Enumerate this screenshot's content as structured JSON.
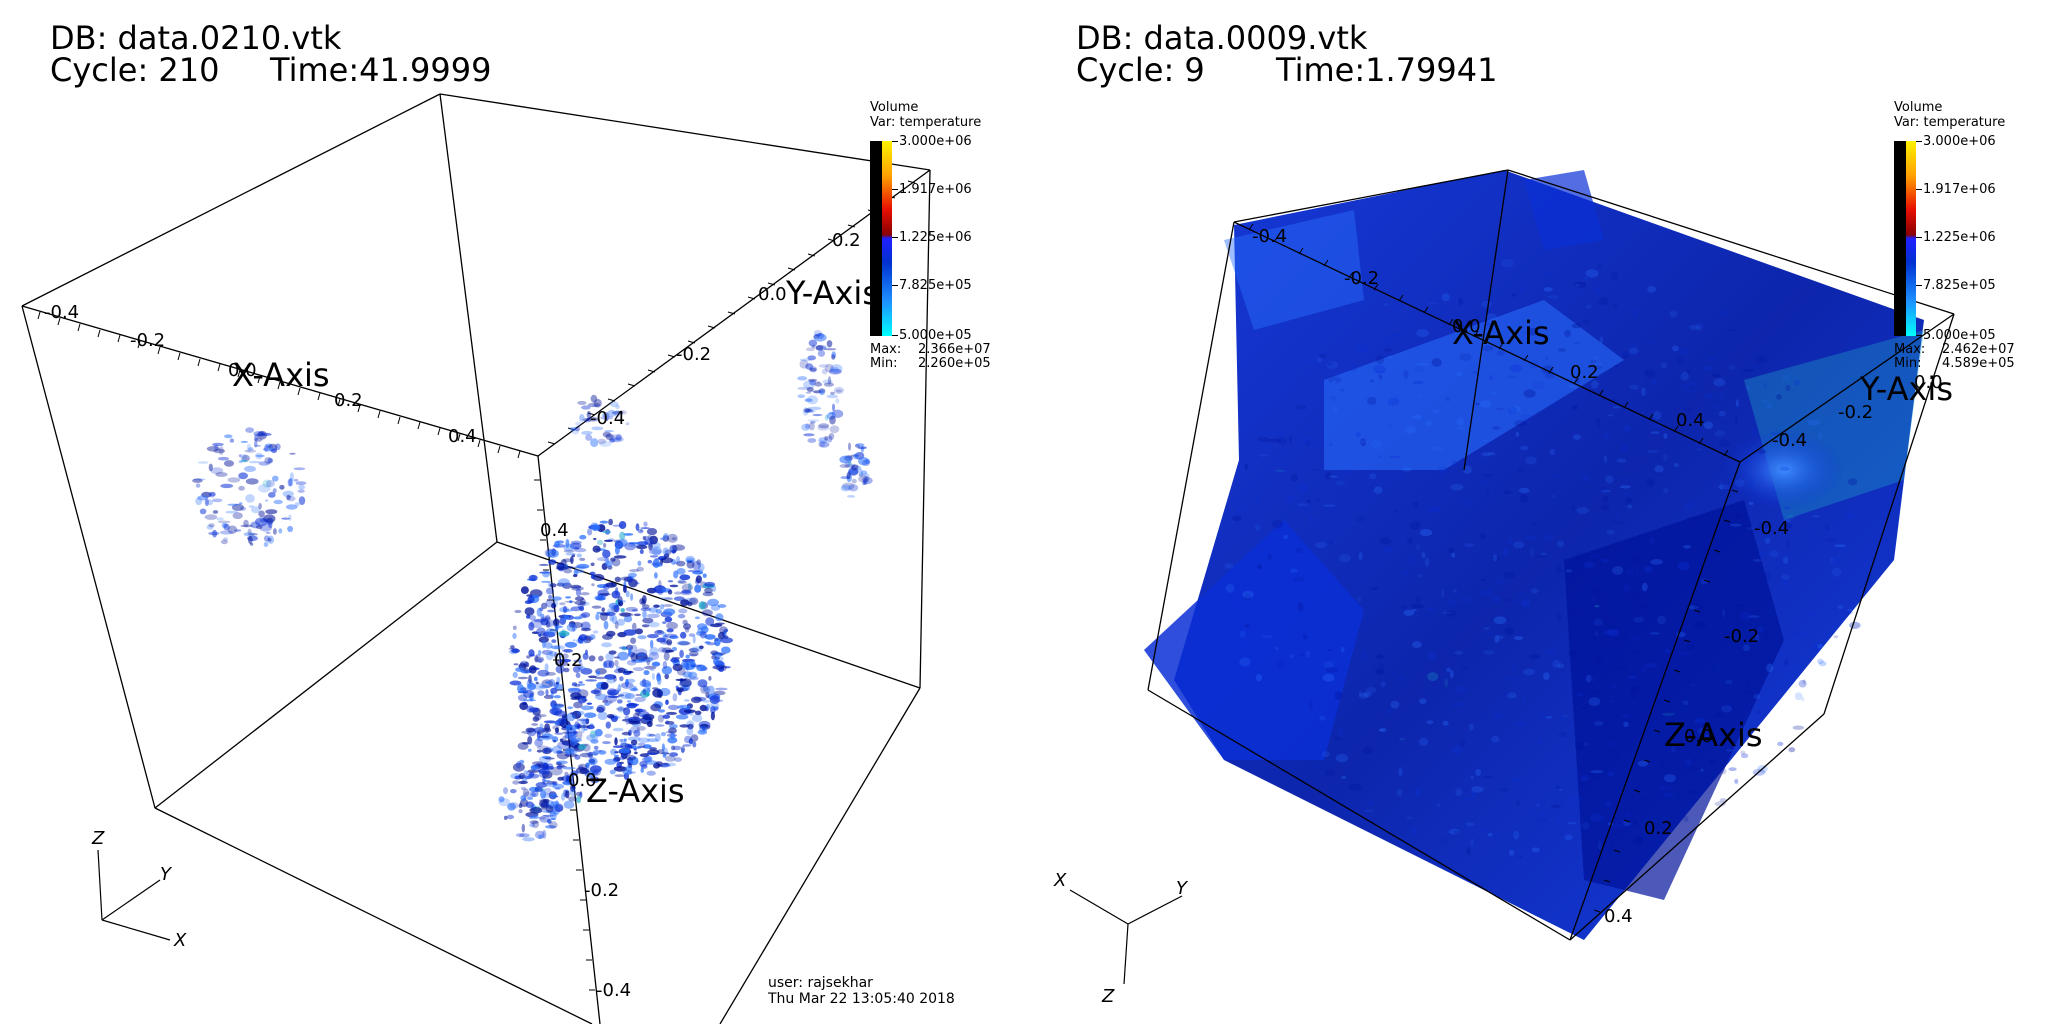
{
  "left": {
    "db": "DB: data.0210.vtk",
    "cycle": "Cycle: 210",
    "time": "Time:41.9999",
    "legend": {
      "title": "Volume",
      "var": "Var: temperature",
      "labels": [
        "3.000e+06",
        "1.917e+06",
        "1.225e+06",
        "7.825e+05",
        "5.000e+05"
      ],
      "max_label": "Max:",
      "max_value": "2.366e+07",
      "min_label": "Min:",
      "min_value": "2.260e+05",
      "overlap_tick": "0.4"
    },
    "axes": {
      "x_title": "X-Axis",
      "y_title": "Y-Axis",
      "z_title": "Z-Axis",
      "x_ticks": [
        "-0.4",
        "-0.2",
        "0.0",
        "0.2",
        "0.4"
      ],
      "y_ticks": [
        "-0.4",
        "-0.2",
        "0.0",
        "0.2"
      ],
      "z_ticks": [
        "0.4",
        "0.2",
        "0.0",
        "-0.2",
        "-0.4"
      ]
    },
    "triad": {
      "x": "X",
      "y": "Y",
      "z": "Z"
    },
    "user": "user: rajsekhar",
    "date": "Thu Mar 22 13:05:40 2018"
  },
  "right": {
    "db": "DB: data.0009.vtk",
    "cycle": "Cycle: 9",
    "time": "Time:1.79941",
    "legend": {
      "title": "Volume",
      "var": "Var: temperature",
      "labels": [
        "3.000e+06",
        "1.917e+06",
        "1.225e+06",
        "7.825e+05",
        "5.000e+05"
      ],
      "max_label": "Max:",
      "max_value": "2.462e+07",
      "min_label": "Min:",
      "min_value": "4.589e+05"
    },
    "axes": {
      "x_title": "X-Axis",
      "y_title": "Y-Axis",
      "z_title": "Z-Axis",
      "x_ticks": [
        "-0.4",
        "-0.2",
        "0.0",
        "0.2",
        "0.4"
      ],
      "y_ticks": [
        "0.0",
        "-0.2",
        "-0.4"
      ],
      "z_ticks": [
        "-0.4",
        "-0.2",
        "0.0",
        "0.2",
        "0.4"
      ]
    },
    "triad": {
      "x": "X",
      "y": "Y",
      "z": "Z"
    }
  },
  "colors": {
    "volume_dark": "#00129a",
    "volume_mid": "#0a2fd6",
    "volume_light": "#2a6fff",
    "volume_cyan": "#1fa8c8"
  }
}
